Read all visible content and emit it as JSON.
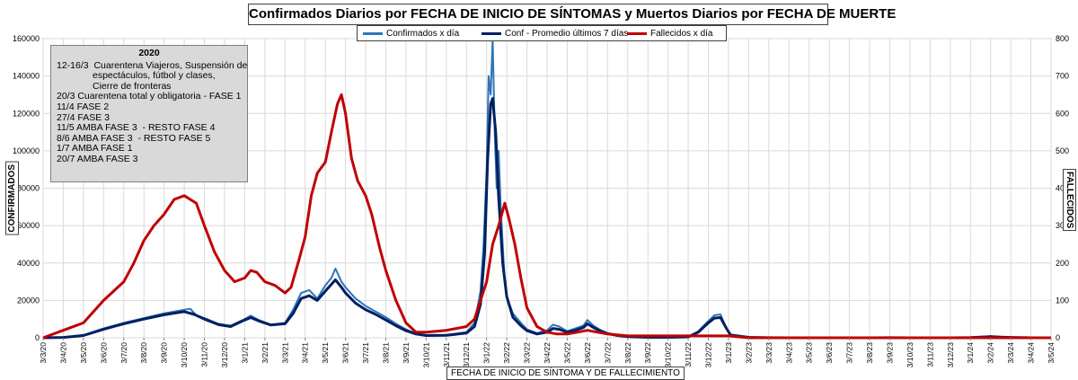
{
  "chart_data": {
    "type": "line",
    "title": "Confirmados  Diarios  por FECHA DE INICIO DE SÍNTOMAS y Muertos Diarios  por  FECHA DE MUERTE",
    "xlabel": "FECHA DE INICIO DE  SÍNTOMA  Y DE FALLECIMIENTO",
    "ylabel_left": "CONFIRMADOS",
    "ylabel_right": "FALLECIDOS",
    "y_left_lim": [
      0,
      160000
    ],
    "y_right_lim": [
      0,
      800
    ],
    "y_left_ticks": [
      "0",
      "20000",
      "40000",
      "60000",
      "80000",
      "100000",
      "120000",
      "140000",
      "160000"
    ],
    "y_right_ticks": [
      "0",
      "100",
      "200",
      "300",
      "400",
      "500",
      "600",
      "700",
      "800"
    ],
    "x_ticks": [
      "3/3/20",
      "3/4/20",
      "3/5/20",
      "3/6/20",
      "3/7/20",
      "3/8/20",
      "3/9/20",
      "3/10/20",
      "3/11/20",
      "3/12/20",
      "3/1/21",
      "3/2/21",
      "3/3/21",
      "3/4/21",
      "3/5/21",
      "3/6/21",
      "3/7/21",
      "3/8/21",
      "3/9/21",
      "3/10/21",
      "3/11/21",
      "3/12/21",
      "3/1/22",
      "3/2/22",
      "3/3/22",
      "3/4/22",
      "3/5/22",
      "3/6/22",
      "3/7/22",
      "3/8/22",
      "3/9/22",
      "3/10/22",
      "3/11/22",
      "3/12/22",
      "3/1/23",
      "3/2/23",
      "3/3/23",
      "3/4/23",
      "3/5/23",
      "3/6/23",
      "3/7/23",
      "3/8/23",
      "3/9/23",
      "3/10/23",
      "3/11/23",
      "3/12/23",
      "3/1/24",
      "3/2/24",
      "3/3/24",
      "3/4/24",
      "3/5/24"
    ],
    "grid": true,
    "legend_position": "top",
    "series": [
      {
        "name": "Confirmados x día",
        "axis": "left",
        "color": "#2e75b6",
        "points": [
          [
            0,
            0
          ],
          [
            1,
            300
          ],
          [
            2,
            1500
          ],
          [
            3,
            5000
          ],
          [
            4,
            8000
          ],
          [
            5,
            10500
          ],
          [
            6,
            13000
          ],
          [
            7,
            15000
          ],
          [
            7.3,
            15500
          ],
          [
            7.6,
            12000
          ],
          [
            8,
            10500
          ],
          [
            8.7,
            7500
          ],
          [
            9.3,
            6500
          ],
          [
            10,
            10000
          ],
          [
            10.3,
            11800
          ],
          [
            10.7,
            9500
          ],
          [
            11.3,
            7000
          ],
          [
            12,
            8000
          ],
          [
            12.4,
            15000
          ],
          [
            12.8,
            24000
          ],
          [
            13.2,
            25500
          ],
          [
            13.6,
            21000
          ],
          [
            14,
            28000
          ],
          [
            14.3,
            32000
          ],
          [
            14.5,
            37000
          ],
          [
            14.8,
            30000
          ],
          [
            15,
            27000
          ],
          [
            15.5,
            21000
          ],
          [
            16,
            17000
          ],
          [
            16.5,
            14000
          ],
          [
            17,
            11000
          ],
          [
            17.5,
            7500
          ],
          [
            18,
            4500
          ],
          [
            18.5,
            2200
          ],
          [
            19,
            1500
          ],
          [
            20,
            1500
          ],
          [
            21,
            3000
          ],
          [
            21.4,
            8000
          ],
          [
            21.7,
            25000
          ],
          [
            21.85,
            50000
          ],
          [
            22,
            90000
          ],
          [
            22.1,
            140000
          ],
          [
            22.2,
            130000
          ],
          [
            22.3,
            160000
          ],
          [
            22.4,
            110000
          ],
          [
            22.5,
            80000
          ],
          [
            22.6,
            100000
          ],
          [
            22.7,
            70000
          ],
          [
            22.8,
            50000
          ],
          [
            22.9,
            30000
          ],
          [
            23,
            22000
          ],
          [
            23.3,
            13000
          ],
          [
            23.7,
            8000
          ],
          [
            24,
            4500
          ],
          [
            24.5,
            2500
          ],
          [
            25,
            4000
          ],
          [
            25.3,
            7000
          ],
          [
            25.6,
            6000
          ],
          [
            26,
            3500
          ],
          [
            26.4,
            5000
          ],
          [
            26.8,
            6500
          ],
          [
            27,
            9500
          ],
          [
            27.3,
            6500
          ],
          [
            27.6,
            4500
          ],
          [
            28,
            2500
          ],
          [
            28.5,
            1500
          ],
          [
            29,
            700
          ],
          [
            30,
            300
          ],
          [
            31,
            300
          ],
          [
            32,
            600
          ],
          [
            32.5,
            3500
          ],
          [
            33,
            9000
          ],
          [
            33.3,
            12000
          ],
          [
            33.6,
            12500
          ],
          [
            33.9,
            5000
          ],
          [
            34.1,
            1500
          ],
          [
            35,
            300
          ],
          [
            36,
            100
          ],
          [
            37,
            0
          ],
          [
            38,
            0
          ],
          [
            39,
            0
          ],
          [
            40,
            0
          ],
          [
            41,
            0
          ],
          [
            42,
            100
          ],
          [
            43,
            0
          ],
          [
            44,
            0
          ],
          [
            45,
            0
          ],
          [
            46,
            200
          ],
          [
            47,
            800
          ],
          [
            47.5,
            500
          ],
          [
            48,
            300
          ],
          [
            49,
            0
          ],
          [
            50,
            0
          ]
        ]
      },
      {
        "name": "Conf - Promedio últimos 7 días",
        "axis": "left",
        "color": "#002060",
        "points": [
          [
            0,
            0
          ],
          [
            1,
            200
          ],
          [
            2,
            1200
          ],
          [
            3,
            4500
          ],
          [
            4,
            7500
          ],
          [
            5,
            10000
          ],
          [
            6,
            12300
          ],
          [
            7,
            14000
          ],
          [
            7.5,
            12500
          ],
          [
            8,
            10000
          ],
          [
            8.7,
            7000
          ],
          [
            9.3,
            6000
          ],
          [
            10,
            9500
          ],
          [
            10.3,
            10800
          ],
          [
            10.7,
            9000
          ],
          [
            11.3,
            6800
          ],
          [
            12,
            7500
          ],
          [
            12.4,
            13000
          ],
          [
            12.8,
            21000
          ],
          [
            13.2,
            22500
          ],
          [
            13.6,
            20000
          ],
          [
            14,
            25000
          ],
          [
            14.5,
            31000
          ],
          [
            14.8,
            27000
          ],
          [
            15,
            24000
          ],
          [
            15.5,
            18500
          ],
          [
            16,
            15000
          ],
          [
            16.5,
            12500
          ],
          [
            17,
            9500
          ],
          [
            17.5,
            6500
          ],
          [
            18,
            3800
          ],
          [
            18.5,
            2000
          ],
          [
            19,
            1200
          ],
          [
            20,
            1300
          ],
          [
            21,
            2500
          ],
          [
            21.4,
            6000
          ],
          [
            21.7,
            18000
          ],
          [
            21.9,
            45000
          ],
          [
            22.05,
            95000
          ],
          [
            22.2,
            125000
          ],
          [
            22.3,
            128000
          ],
          [
            22.45,
            110000
          ],
          [
            22.6,
            75000
          ],
          [
            22.8,
            40000
          ],
          [
            23,
            22000
          ],
          [
            23.3,
            11000
          ],
          [
            23.7,
            6500
          ],
          [
            24,
            3800
          ],
          [
            24.5,
            2000
          ],
          [
            25,
            3000
          ],
          [
            25.3,
            5000
          ],
          [
            25.6,
            4500
          ],
          [
            26,
            3000
          ],
          [
            26.4,
            4000
          ],
          [
            26.8,
            5500
          ],
          [
            27,
            7500
          ],
          [
            27.3,
            5500
          ],
          [
            27.6,
            3800
          ],
          [
            28,
            2200
          ],
          [
            28.5,
            1200
          ],
          [
            29,
            600
          ],
          [
            30,
            250
          ],
          [
            31,
            250
          ],
          [
            32,
            500
          ],
          [
            32.5,
            3000
          ],
          [
            33,
            8000
          ],
          [
            33.3,
            10500
          ],
          [
            33.6,
            10800
          ],
          [
            33.9,
            5000
          ],
          [
            34.1,
            1500
          ],
          [
            35,
            250
          ],
          [
            36,
            50
          ],
          [
            37,
            0
          ],
          [
            38,
            0
          ],
          [
            39,
            0
          ],
          [
            40,
            0
          ],
          [
            41,
            0
          ],
          [
            42,
            50
          ],
          [
            43,
            0
          ],
          [
            44,
            0
          ],
          [
            45,
            0
          ],
          [
            46,
            150
          ],
          [
            47,
            600
          ],
          [
            47.5,
            400
          ],
          [
            48,
            200
          ],
          [
            49,
            0
          ],
          [
            50,
            0
          ]
        ]
      },
      {
        "name": "Fallecidos x día",
        "axis": "right",
        "color": "#c00000",
        "points": [
          [
            0,
            0
          ],
          [
            1,
            20
          ],
          [
            2,
            40
          ],
          [
            3,
            100
          ],
          [
            4,
            150
          ],
          [
            4.5,
            200
          ],
          [
            5,
            260
          ],
          [
            5.5,
            300
          ],
          [
            6,
            330
          ],
          [
            6.5,
            370
          ],
          [
            7,
            380
          ],
          [
            7.3,
            370
          ],
          [
            7.6,
            360
          ],
          [
            8,
            300
          ],
          [
            8.5,
            230
          ],
          [
            9,
            180
          ],
          [
            9.5,
            150
          ],
          [
            10,
            160
          ],
          [
            10.3,
            180
          ],
          [
            10.6,
            175
          ],
          [
            11,
            150
          ],
          [
            11.5,
            140
          ],
          [
            12,
            120
          ],
          [
            12.3,
            135
          ],
          [
            12.7,
            210
          ],
          [
            13,
            270
          ],
          [
            13.3,
            380
          ],
          [
            13.6,
            440
          ],
          [
            14,
            470
          ],
          [
            14.3,
            550
          ],
          [
            14.6,
            625
          ],
          [
            14.8,
            650
          ],
          [
            15,
            600
          ],
          [
            15.3,
            480
          ],
          [
            15.6,
            420
          ],
          [
            16,
            380
          ],
          [
            16.3,
            330
          ],
          [
            16.7,
            240
          ],
          [
            17,
            180
          ],
          [
            17.5,
            100
          ],
          [
            18,
            40
          ],
          [
            18.5,
            15
          ],
          [
            19,
            15
          ],
          [
            20,
            20
          ],
          [
            21,
            30
          ],
          [
            21.4,
            50
          ],
          [
            21.7,
            100
          ],
          [
            22,
            150
          ],
          [
            22.3,
            250
          ],
          [
            22.6,
            300
          ],
          [
            22.9,
            360
          ],
          [
            23.1,
            320
          ],
          [
            23.4,
            250
          ],
          [
            23.7,
            160
          ],
          [
            24,
            80
          ],
          [
            24.5,
            30
          ],
          [
            25,
            15
          ],
          [
            25.5,
            10
          ],
          [
            26,
            10
          ],
          [
            26.5,
            15
          ],
          [
            27,
            20
          ],
          [
            27.5,
            15
          ],
          [
            28,
            10
          ],
          [
            29,
            5
          ],
          [
            30,
            5
          ],
          [
            31,
            5
          ],
          [
            32,
            5
          ],
          [
            33,
            5
          ],
          [
            34,
            5
          ],
          [
            35,
            0
          ],
          [
            36,
            0
          ],
          [
            37,
            0
          ],
          [
            38,
            0
          ],
          [
            39,
            0
          ],
          [
            40,
            0
          ],
          [
            41,
            0
          ],
          [
            42,
            0
          ],
          [
            43,
            0
          ],
          [
            44,
            0
          ],
          [
            45,
            0
          ],
          [
            46,
            0
          ],
          [
            47,
            0
          ],
          [
            48,
            0
          ],
          [
            49,
            0
          ],
          [
            50,
            0
          ]
        ]
      }
    ]
  },
  "annotation": {
    "year": "2020",
    "lines": [
      "12-16/3  Cuarentena Viajeros, Suspensión de",
      "espectáculos, fútbol y clases,",
      "Cierre de fronteras",
      "20/3 Cuarentena total y obligatoria - FASE 1",
      "11/4 FASE 2",
      "27/4 FASE 3",
      "11/5 AMBA FASE 3  - RESTO FASE 4",
      "8/6 AMBA FASE 3  - RESTO FASE 5",
      "1/7 AMBA FASE 1",
      "20/7 AMBA FASE 3"
    ]
  },
  "colors": {
    "confirmados": "#2e75b6",
    "promedio": "#002060",
    "fallecidos": "#c00000",
    "grid": "#d9d9d9"
  }
}
